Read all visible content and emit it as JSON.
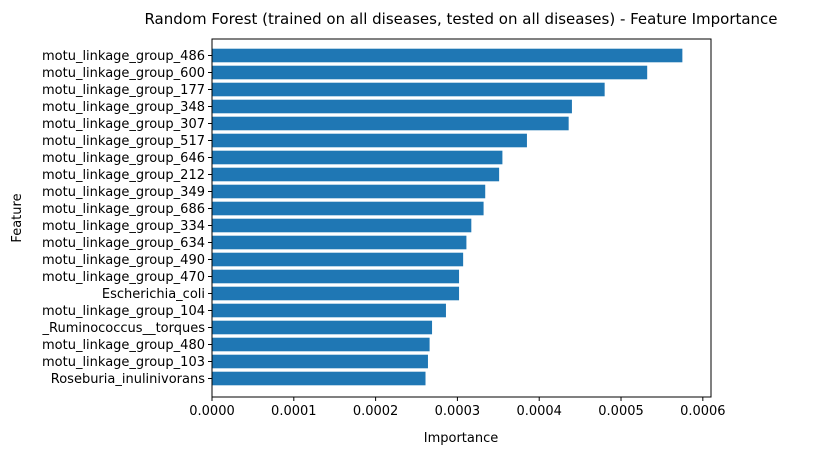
{
  "chart_data": {
    "type": "bar",
    "orientation": "horizontal",
    "title": "Random Forest (trained on all diseases, tested on all diseases) -  Feature Importance",
    "xlabel": "Importance",
    "ylabel": "Feature",
    "xlim": [
      0,
      0.00061
    ],
    "xticks": [
      "0.0000",
      "0.0001",
      "0.0002",
      "0.0003",
      "0.0004",
      "0.0005",
      "0.0006"
    ],
    "xtick_values": [
      0,
      0.0001,
      0.0002,
      0.0003,
      0.0004,
      0.0005,
      0.0006
    ],
    "grid": false,
    "bar_color": "#1f77b4",
    "categories": [
      "motu_linkage_group_486",
      "motu_linkage_group_600",
      "motu_linkage_group_177",
      "motu_linkage_group_348",
      "motu_linkage_group_307",
      "motu_linkage_group_517",
      "motu_linkage_group_646",
      "motu_linkage_group_212",
      "motu_linkage_group_349",
      "motu_linkage_group_686",
      "motu_linkage_group_334",
      "motu_linkage_group_634",
      "motu_linkage_group_490",
      "motu_linkage_group_470",
      "Escherichia_coli",
      "motu_linkage_group_104",
      "_Ruminococcus__torques",
      "motu_linkage_group_480",
      "motu_linkage_group_103",
      "Roseburia_inulinivorans"
    ],
    "values": [
      0.000575,
      0.000532,
      0.00048,
      0.00044,
      0.000436,
      0.000385,
      0.000355,
      0.000351,
      0.000334,
      0.000332,
      0.000317,
      0.000311,
      0.000307,
      0.000302,
      0.000302,
      0.000286,
      0.000269,
      0.000266,
      0.000264,
      0.000261
    ]
  }
}
